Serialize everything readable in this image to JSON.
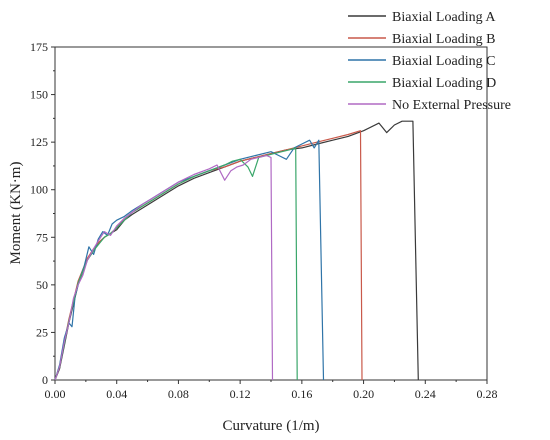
{
  "chart_data": {
    "type": "line",
    "title": "",
    "xlabel": "Curvature (1/m)",
    "ylabel": "Moment (KN·m)",
    "xlim": [
      0,
      0.28
    ],
    "ylim": [
      0,
      175
    ],
    "xticks": [
      "0.00",
      "0.04",
      "0.08",
      "0.12",
      "0.16",
      "0.20",
      "0.24",
      "0.28"
    ],
    "yticks": [
      "0",
      "25",
      "50",
      "75",
      "100",
      "125",
      "150",
      "175"
    ],
    "legend_position": "top-right",
    "grid": false,
    "series": [
      {
        "name": "Biaxial Loading A",
        "color": "#3a3a3a",
        "x": [
          0,
          0.003,
          0.006,
          0.009,
          0.012,
          0.015,
          0.018,
          0.021,
          0.025,
          0.028,
          0.032,
          0.036,
          0.04,
          0.045,
          0.05,
          0.056,
          0.062,
          0.07,
          0.08,
          0.09,
          0.1,
          0.11,
          0.12,
          0.13,
          0.14,
          0.15,
          0.16,
          0.17,
          0.18,
          0.19,
          0.2,
          0.21,
          0.215,
          0.22,
          0.225,
          0.23,
          0.232,
          0.2355
        ],
        "y": [
          0,
          6,
          18,
          30,
          40,
          50,
          57,
          63,
          68,
          72,
          75,
          77,
          79,
          84,
          87,
          90,
          93,
          97,
          102,
          106,
          109,
          112,
          115,
          117,
          119,
          121,
          122,
          124,
          126,
          128,
          131,
          135,
          130,
          134,
          136,
          136,
          136,
          0
        ]
      },
      {
        "name": "Biaxial Loading B",
        "color": "#c9594a",
        "x": [
          0,
          0.003,
          0.006,
          0.009,
          0.012,
          0.015,
          0.018,
          0.021,
          0.025,
          0.028,
          0.032,
          0.036,
          0.04,
          0.045,
          0.05,
          0.056,
          0.062,
          0.07,
          0.08,
          0.09,
          0.1,
          0.11,
          0.12,
          0.13,
          0.14,
          0.15,
          0.16,
          0.17,
          0.18,
          0.19,
          0.198,
          0.199
        ],
        "y": [
          0,
          7,
          20,
          32,
          42,
          52,
          58,
          64,
          69,
          72,
          75,
          77,
          80,
          85,
          88,
          91,
          94,
          98,
          103,
          107,
          110,
          112,
          115,
          117,
          119,
          121,
          123,
          125,
          127,
          129,
          131,
          0
        ]
      },
      {
        "name": "Biaxial Loading C",
        "color": "#2f74a8",
        "x": [
          0,
          0.003,
          0.006,
          0.009,
          0.011,
          0.013,
          0.016,
          0.019,
          0.022,
          0.025,
          0.028,
          0.031,
          0.034,
          0.037,
          0.04,
          0.045,
          0.05,
          0.056,
          0.062,
          0.07,
          0.08,
          0.09,
          0.1,
          0.11,
          0.12,
          0.13,
          0.14,
          0.145,
          0.15,
          0.155,
          0.16,
          0.165,
          0.168,
          0.171,
          0.174
        ],
        "y": [
          0,
          8,
          22,
          30,
          28,
          44,
          53,
          60,
          70,
          66,
          74,
          78,
          76,
          82,
          84,
          86,
          89,
          92,
          95,
          99,
          104,
          107,
          110,
          113,
          116,
          118,
          120,
          118,
          116,
          122,
          124,
          126,
          122,
          126,
          0
        ]
      },
      {
        "name": "Biaxial Loading D",
        "color": "#3aa66a",
        "x": [
          0,
          0.003,
          0.006,
          0.009,
          0.012,
          0.015,
          0.018,
          0.021,
          0.025,
          0.028,
          0.032,
          0.036,
          0.04,
          0.045,
          0.05,
          0.056,
          0.062,
          0.07,
          0.08,
          0.09,
          0.1,
          0.11,
          0.115,
          0.12,
          0.125,
          0.128,
          0.132,
          0.137,
          0.142,
          0.147,
          0.152,
          0.156,
          0.157
        ],
        "y": [
          0,
          7,
          19,
          31,
          41,
          51,
          57,
          63,
          68,
          71,
          75,
          77,
          80,
          84,
          88,
          91,
          94,
          98,
          103,
          107,
          110,
          113,
          115,
          116,
          112,
          107,
          117,
          118,
          119,
          120,
          121,
          122,
          0
        ]
      },
      {
        "name": "No External Pressure",
        "color": "#b06ac4",
        "x": [
          0,
          0.003,
          0.006,
          0.009,
          0.012,
          0.015,
          0.018,
          0.021,
          0.025,
          0.028,
          0.032,
          0.036,
          0.04,
          0.045,
          0.05,
          0.056,
          0.062,
          0.07,
          0.08,
          0.09,
          0.1,
          0.105,
          0.11,
          0.114,
          0.118,
          0.122,
          0.127,
          0.132,
          0.137,
          0.14,
          0.141
        ],
        "y": [
          0,
          7,
          20,
          30,
          43,
          50,
          55,
          63,
          69,
          73,
          78,
          76,
          81,
          85,
          88,
          92,
          95,
          99,
          104,
          108,
          111,
          113,
          105,
          110,
          112,
          113,
          116,
          117,
          118,
          117,
          0
        ]
      }
    ]
  }
}
